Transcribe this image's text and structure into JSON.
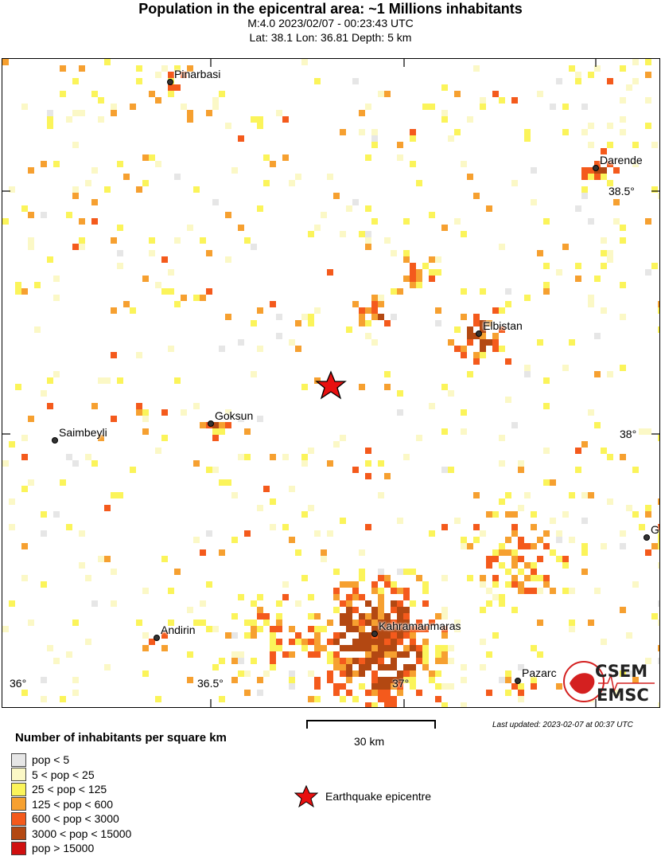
{
  "header": {
    "title": "Population in the epicentral area: ~1 Millions inhabitants",
    "line1": "M:4.0 2023/02/07 - 00:23:43 UTC",
    "line2": "Lat: 38.1 Lon: 36.81 Depth: 5 km"
  },
  "map": {
    "cities": [
      {
        "name": "Pinarbasi"
      },
      {
        "name": "Darende"
      },
      {
        "name": "Elbistan"
      },
      {
        "name": "Goksun"
      },
      {
        "name": "Saimbeyli"
      },
      {
        "name": "Andirin"
      },
      {
        "name": "Kahramanmaras"
      },
      {
        "name": "Pazarc"
      },
      {
        "name": "G"
      }
    ],
    "lon_ticks": [
      "36°",
      "36.5°",
      "37°"
    ],
    "lat_ticks": [
      "38.5°",
      "38°"
    ],
    "epicentre_icon": "red-star-icon",
    "logo_text": [
      "CSEM",
      "EMSC"
    ]
  },
  "legend": {
    "title": "Number of inhabitants per square km",
    "items": [
      {
        "label": "pop < 5",
        "color": "#e6e6e6"
      },
      {
        "label": "5 < pop < 25",
        "color": "#fbf8c6"
      },
      {
        "label": "25 < pop < 125",
        "color": "#fbf45a"
      },
      {
        "label": "125 < pop < 600",
        "color": "#f6a030"
      },
      {
        "label": "600 < pop < 3000",
        "color": "#f45a1c"
      },
      {
        "label": "3000 < pop < 15000",
        "color": "#b34812"
      },
      {
        "label": "pop > 15000",
        "color": "#d01010"
      }
    ],
    "epicentre_label": "Earthquake epicentre",
    "scale_label": "30 km",
    "updated": "Last updated: 2023-02-07 at 00:37 UTC"
  }
}
